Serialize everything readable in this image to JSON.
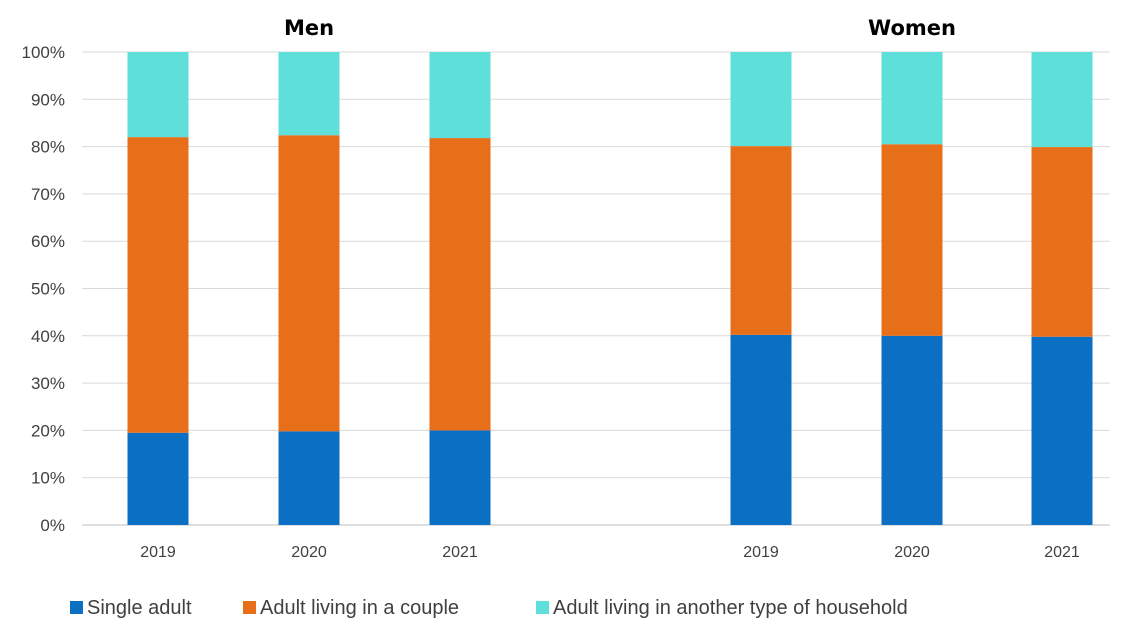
{
  "chart_data": {
    "type": "bar",
    "stacked": true,
    "groups": [
      {
        "title": "Men",
        "categories": [
          "2019",
          "2020",
          "2021"
        ]
      },
      {
        "title": "Women",
        "categories": [
          "2019",
          "2020",
          "2021"
        ]
      }
    ],
    "series": [
      {
        "name": "Single adult",
        "color": "#0B6FC4",
        "men": [
          19.5,
          19.8,
          20.0
        ],
        "women": [
          40.2,
          40.0,
          39.8
        ]
      },
      {
        "name": "Adult living in a couple",
        "color": "#E86F1A",
        "men": [
          62.5,
          62.6,
          61.8
        ],
        "women": [
          39.9,
          40.5,
          40.1
        ]
      },
      {
        "name": "Adult living in another type of household",
        "color": "#5EDFD9",
        "men": [
          18.0,
          17.6,
          18.2
        ],
        "women": [
          19.9,
          19.5,
          20.1
        ]
      }
    ],
    "y_ticks": [
      "0%",
      "10%",
      "20%",
      "30%",
      "40%",
      "50%",
      "60%",
      "70%",
      "80%",
      "90%",
      "100%"
    ],
    "ylim": [
      0,
      100
    ],
    "grid": true,
    "legend_position": "bottom"
  }
}
